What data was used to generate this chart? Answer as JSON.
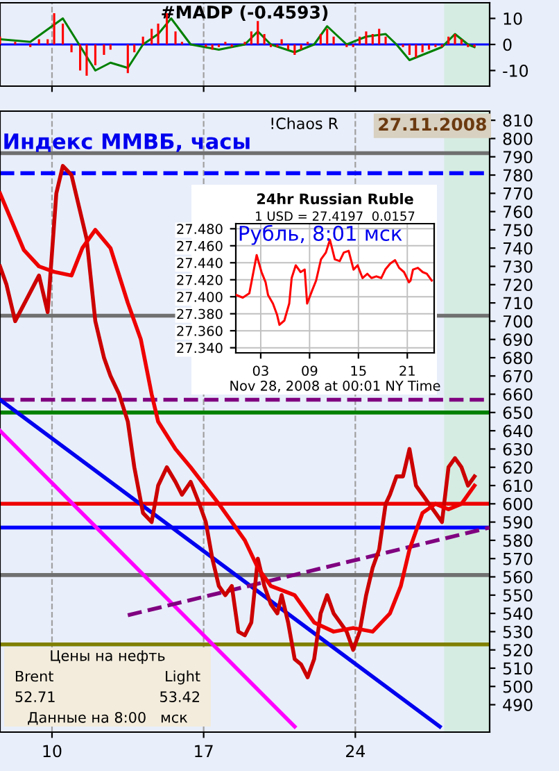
{
  "chart_data": [
    {
      "type": "bar",
      "title": "#MADP (-0.4593)",
      "xlim": [
        7.6,
        30.2
      ],
      "xticks": [
        10,
        17,
        24
      ],
      "ylim": [
        -16,
        16
      ],
      "yticks": [
        -10,
        0,
        10
      ],
      "tick_labels": "y",
      "grid": "x",
      "ref_lines": [
        {
          "axis": "y",
          "value": 0,
          "label": null,
          "color": "#0000ff"
        }
      ],
      "bands": [
        {
          "axis": "x",
          "from": 28.1,
          "to": 30.2,
          "label": null,
          "color": "#d5ece2"
        }
      ],
      "series": [
        {
          "type": "bar",
          "color": "#ff0000",
          "x": [
            7.6,
            8.3,
            9.0,
            9.4,
            9.8,
            10.1,
            10.5,
            10.9,
            11.3,
            11.6,
            12.0,
            12.4,
            12.7,
            13.5,
            13.8,
            14.2,
            14.6,
            14.9,
            15.3,
            15.7,
            16.0,
            16.4,
            17.1,
            17.4,
            17.7,
            18.0,
            18.3,
            18.9,
            19.2,
            19.5,
            19.8,
            20.1,
            20.4,
            20.6,
            20.9,
            21.2,
            21.5,
            21.8,
            22.4,
            22.7,
            23.0,
            23.3,
            23.6,
            23.9,
            24.2,
            24.5,
            24.8,
            25.1,
            25.4,
            25.9,
            26.2,
            26.5,
            26.8,
            27.1,
            27.4,
            27.7,
            28.0,
            28.3,
            28.6,
            28.9,
            29.2,
            29.5
          ],
          "values": [
            3,
            1,
            -1,
            2,
            2,
            12,
            8,
            -3,
            -10,
            -12,
            -8,
            -4,
            -2,
            -11,
            -3,
            3,
            6,
            8,
            12,
            5,
            1,
            0,
            -1,
            -2,
            -1,
            1,
            -1,
            1,
            5,
            9,
            4,
            -1,
            -1,
            2,
            -2,
            -4,
            -2,
            1,
            4,
            6,
            3,
            0,
            -1,
            -1,
            3,
            5,
            4,
            6,
            3,
            0,
            -1,
            -4,
            -5,
            -3,
            -2,
            -1,
            -1,
            3,
            4,
            2,
            -1,
            -1
          ]
        },
        {
          "type": "line",
          "color": "#008000",
          "x": [
            7.6,
            9.0,
            10.5,
            12.0,
            12.7,
            13.5,
            14.2,
            14.9,
            15.5,
            16.4,
            17.7,
            18.9,
            19.5,
            20.1,
            21.2,
            22.1,
            22.7,
            23.6,
            24.5,
            25.4,
            25.9,
            26.5,
            27.1,
            28.0,
            28.6,
            29.2,
            29.5
          ],
          "values": [
            2,
            1,
            10,
            -10,
            -7,
            -9,
            0,
            4,
            10,
            0,
            -2,
            0,
            5,
            0,
            -3,
            0,
            7,
            0,
            3,
            4,
            0,
            -6,
            -4,
            -1,
            4,
            0,
            -1
          ]
        }
      ]
    },
    {
      "type": "line",
      "xlim": [
        7.6,
        30.2
      ],
      "xticks": [
        10,
        17,
        24
      ],
      "ylim": [
        475,
        815
      ],
      "yticks": [
        490,
        500,
        510,
        520,
        530,
        540,
        550,
        560,
        570,
        580,
        590,
        600,
        610,
        620,
        630,
        640,
        650,
        660,
        670,
        680,
        690,
        700,
        710,
        720,
        730,
        740,
        750,
        760,
        770,
        780,
        790,
        800,
        810
      ],
      "grid": "x",
      "annotations": [
        "Индекс ММВБ, часы",
        "!Chaos R",
        "27.11.2008"
      ],
      "bands": [
        {
          "axis": "x",
          "from": 28.1,
          "to": 30.2,
          "label": null,
          "color": "#d5ece2"
        }
      ],
      "ref_lines": [
        {
          "axis": "y",
          "value": 792,
          "label": null,
          "color": "#707070"
        },
        {
          "axis": "y",
          "value": 781,
          "label": null,
          "color": "#0000ff",
          "line_style": "dashed"
        },
        {
          "axis": "y",
          "value": 703,
          "label": null,
          "color": "#707070"
        },
        {
          "axis": "y",
          "value": 657,
          "label": null,
          "color": "#800080",
          "line_style": "dashed"
        },
        {
          "axis": "y",
          "value": 650,
          "label": null,
          "color": "#008000"
        },
        {
          "axis": "y",
          "value": 600,
          "label": null,
          "color": "#ee0000"
        },
        {
          "axis": "y",
          "value": 587,
          "label": null,
          "color": "#0000ff"
        },
        {
          "axis": "y",
          "value": 561,
          "label": null,
          "color": "#707070"
        },
        {
          "axis": "y",
          "value": 523,
          "label": null,
          "color": "#808000"
        }
      ],
      "series": [
        {
          "color": "#0000ee",
          "x": [
            7.6,
            27.9
          ],
          "values": [
            657,
            478
          ]
        },
        {
          "color": "#ff00ff",
          "x": [
            7.6,
            21.2
          ],
          "values": [
            640,
            478
          ]
        },
        {
          "color": "#800080",
          "line_style": "dashed",
          "x": [
            13.5,
            30.2
          ],
          "values": [
            539,
            587
          ]
        },
        {
          "color": "#cc0000",
          "x": [
            7.6,
            7.9,
            8.3,
            9.4,
            9.8,
            10.2,
            10.5,
            10.9,
            11.3,
            11.6,
            12.0,
            12.4,
            12.7,
            13.1,
            13.5,
            13.8,
            14.2,
            14.6,
            14.9,
            15.3,
            15.7,
            16.0,
            16.4,
            16.8,
            17.1,
            17.4,
            17.7,
            18.0,
            18.3,
            18.6,
            18.9,
            19.2,
            19.5,
            19.8,
            20.1,
            20.4,
            20.6,
            20.9,
            21.2,
            21.5,
            21.8,
            22.1,
            22.4,
            22.7,
            23.0,
            23.3,
            23.6,
            23.9,
            24.2,
            24.5,
            24.8,
            25.1,
            25.4,
            25.6,
            25.9,
            26.2,
            26.5,
            26.8,
            27.1,
            27.4,
            27.7,
            28.0,
            28.3,
            28.6,
            28.9,
            29.2,
            29.5
          ],
          "values": [
            730,
            720,
            700,
            725,
            705,
            770,
            785,
            780,
            760,
            745,
            700,
            680,
            670,
            660,
            645,
            620,
            595,
            590,
            610,
            620,
            612,
            605,
            612,
            600,
            590,
            570,
            555,
            550,
            555,
            530,
            528,
            535,
            570,
            555,
            545,
            540,
            550,
            535,
            515,
            512,
            505,
            515,
            540,
            550,
            540,
            535,
            530,
            520,
            530,
            550,
            565,
            575,
            600,
            605,
            615,
            615,
            630,
            610,
            605,
            600,
            595,
            590,
            620,
            625,
            620,
            610,
            615
          ]
        },
        {
          "color": "#ee0000",
          "x": [
            7.6,
            8.7,
            9.4,
            10.1,
            10.9,
            11.4,
            12.0,
            12.7,
            13.5,
            14.1,
            14.6,
            14.9,
            15.7,
            16.4,
            17.7,
            18.9,
            19.5,
            20.1,
            21.2,
            22.1,
            23.0,
            23.9,
            24.8,
            25.6,
            26.1,
            26.5,
            27.1,
            27.7,
            28.3,
            28.9,
            29.5
          ],
          "values": [
            770,
            739,
            730,
            727,
            725,
            740,
            750,
            740,
            710,
            690,
            660,
            645,
            630,
            620,
            600,
            580,
            565,
            555,
            550,
            535,
            530,
            532,
            530,
            540,
            555,
            575,
            595,
            600,
            597,
            600,
            610
          ]
        }
      ]
    },
    {
      "type": "line",
      "title": "24hr Russian Ruble",
      "subtitle": "1 USD = 27.4197  0.0157",
      "xlabel": "Nov 28, 2008 at 00:01 NY Time",
      "annotations": [
        "Рубль, 8:01 мск"
      ],
      "xlim": [
        -0.06,
        24.3
      ],
      "xticks": [
        {
          "value": 3,
          "label": "03"
        },
        {
          "value": 9,
          "label": "09"
        },
        {
          "value": 15,
          "label": "15"
        },
        {
          "value": 21,
          "label": "21"
        }
      ],
      "ylim": [
        27.334,
        27.486
      ],
      "yticks": [
        {
          "value": 27.34,
          "label": "27.340"
        },
        {
          "value": 27.36,
          "label": "27.360"
        },
        {
          "value": 27.38,
          "label": "27.380"
        },
        {
          "value": 27.4,
          "label": "27.400"
        },
        {
          "value": 27.42,
          "label": "27.420"
        },
        {
          "value": 27.44,
          "label": "27.440"
        },
        {
          "value": 27.46,
          "label": "27.460"
        },
        {
          "value": 27.48,
          "label": "27.480"
        }
      ],
      "grid": true,
      "series": [
        {
          "color": "#ff0000",
          "x": [
            0,
            0.8,
            1.6,
            2.5,
            3.1,
            3.6,
            3.9,
            4.5,
            5.0,
            5.3,
            5.9,
            6.5,
            6.8,
            7.3,
            7.9,
            8.4,
            8.7,
            9.3,
            9.8,
            10.4,
            11.0,
            11.5,
            12.1,
            12.7,
            13.2,
            13.8,
            14.4,
            14.9,
            15.5,
            16.1,
            16.6,
            17.2,
            17.8,
            18.3,
            18.9,
            19.5,
            20.0,
            20.6,
            21.2,
            21.4,
            21.7,
            22.3,
            22.9,
            23.4,
            24.0
          ],
          "values": [
            27.402,
            27.399,
            27.404,
            27.449,
            27.429,
            27.417,
            27.402,
            27.392,
            27.379,
            27.367,
            27.372,
            27.392,
            27.422,
            27.437,
            27.429,
            27.432,
            27.392,
            27.407,
            27.419,
            27.444,
            27.452,
            27.467,
            27.444,
            27.442,
            27.452,
            27.454,
            27.432,
            27.437,
            27.422,
            27.427,
            27.422,
            27.424,
            27.422,
            27.432,
            27.439,
            27.443,
            27.434,
            27.429,
            27.417,
            27.419,
            27.432,
            27.434,
            27.429,
            27.427,
            27.419
          ]
        }
      ]
    },
    {
      "type": "other",
      "annotations": [
        "Цены на нефть",
        "Brent",
        "Light",
        "52.71",
        "53.42",
        "Данные на 8:00   мск"
      ]
    }
  ]
}
